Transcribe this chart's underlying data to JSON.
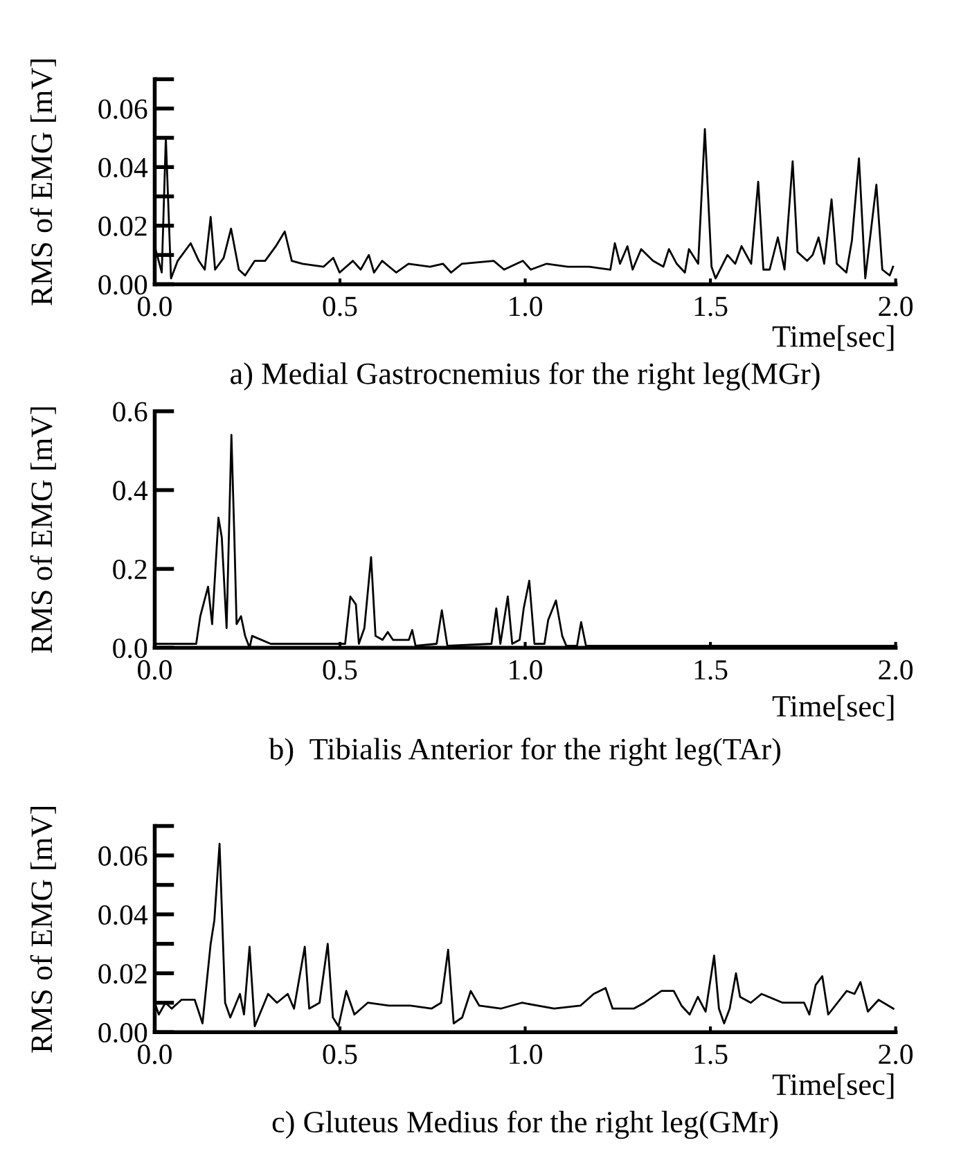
{
  "chart_data": [
    {
      "type": "line",
      "title": "a) Medial Gastrocnemius for the right leg(MGr)",
      "xlabel": "Time[sec]",
      "ylabel": "RMS of EMG [mV]",
      "grid": false,
      "legend": false,
      "xlim": [
        0,
        2.0
      ],
      "ylim": [
        0,
        0.07
      ],
      "xticks": [
        {
          "value": 0,
          "label": "0.0"
        },
        {
          "value": 0.5,
          "label": "0.5"
        },
        {
          "value": 1.0,
          "label": "1.0"
        },
        {
          "value": 1.5,
          "label": "1.5"
        },
        {
          "value": 2.0,
          "label": "2.0"
        }
      ],
      "yticks": [
        {
          "value": 0,
          "label": "0.00"
        },
        {
          "value": 0.01,
          "label": null
        },
        {
          "value": 0.02,
          "label": "0.02"
        },
        {
          "value": 0.03,
          "label": null
        },
        {
          "value": 0.04,
          "label": "0.04"
        },
        {
          "value": 0.05,
          "label": null
        },
        {
          "value": 0.06,
          "label": "0.06"
        },
        {
          "value": 0.07,
          "label": null
        }
      ],
      "series": [
        {
          "color": "#000000",
          "x": [
            0.0,
            0.019,
            0.03,
            0.044,
            0.062,
            0.097,
            0.119,
            0.135,
            0.151,
            0.163,
            0.186,
            0.206,
            0.227,
            0.244,
            0.27,
            0.298,
            0.327,
            0.351,
            0.37,
            0.399,
            0.456,
            0.482,
            0.499,
            0.535,
            0.556,
            0.578,
            0.592,
            0.614,
            0.652,
            0.685,
            0.743,
            0.778,
            0.8,
            0.829,
            0.915,
            0.943,
            0.994,
            1.015,
            1.058,
            1.115,
            1.173,
            1.23,
            1.242,
            1.256,
            1.276,
            1.29,
            1.313,
            1.345,
            1.373,
            1.388,
            1.409,
            1.431,
            1.442,
            1.467,
            1.485,
            1.503,
            1.514,
            1.546,
            1.567,
            1.584,
            1.61,
            1.629,
            1.643,
            1.66,
            1.682,
            1.7,
            1.722,
            1.735,
            1.761,
            1.776,
            1.792,
            1.807,
            1.827,
            1.841,
            1.867,
            1.882,
            1.901,
            1.918,
            1.948,
            1.964,
            1.984,
            1.993
          ],
          "values": [
            0.013,
            0.004,
            0.05,
            0.002,
            0.008,
            0.014,
            0.008,
            0.005,
            0.023,
            0.005,
            0.009,
            0.019,
            0.005,
            0.003,
            0.008,
            0.008,
            0.013,
            0.018,
            0.008,
            0.007,
            0.006,
            0.009,
            0.004,
            0.008,
            0.005,
            0.01,
            0.004,
            0.008,
            0.004,
            0.007,
            0.006,
            0.007,
            0.004,
            0.007,
            0.008,
            0.005,
            0.008,
            0.005,
            0.007,
            0.006,
            0.006,
            0.005,
            0.014,
            0.007,
            0.013,
            0.005,
            0.012,
            0.008,
            0.006,
            0.012,
            0.007,
            0.004,
            0.012,
            0.007,
            0.053,
            0.006,
            0.002,
            0.01,
            0.007,
            0.013,
            0.007,
            0.035,
            0.005,
            0.005,
            0.016,
            0.005,
            0.042,
            0.011,
            0.008,
            0.01,
            0.016,
            0.007,
            0.029,
            0.007,
            0.004,
            0.015,
            0.043,
            0.002,
            0.034,
            0.005,
            0.003,
            0.006
          ]
        }
      ]
    },
    {
      "type": "line",
      "title": "b)  Tibialis Anterior for the right leg(TAr)",
      "xlabel": "Time[sec]",
      "ylabel": "RMS of EMG [mV]",
      "grid": false,
      "legend": false,
      "xlim": [
        0,
        2.0
      ],
      "ylim": [
        0,
        0.6
      ],
      "xticks": [
        {
          "value": 0,
          "label": "0.0"
        },
        {
          "value": 0.5,
          "label": "0.5"
        },
        {
          "value": 1.0,
          "label": "1.0"
        },
        {
          "value": 1.5,
          "label": "1.5"
        },
        {
          "value": 2.0,
          "label": "2.0"
        }
      ],
      "yticks": [
        {
          "value": 0,
          "label": "0.0"
        },
        {
          "value": 0.2,
          "label": "0.2"
        },
        {
          "value": 0.4,
          "label": "0.4"
        },
        {
          "value": 0.6,
          "label": "0.6"
        }
      ],
      "series": [
        {
          "color": "#000000",
          "x": [
            0.0,
            0.112,
            0.123,
            0.144,
            0.155,
            0.172,
            0.181,
            0.194,
            0.207,
            0.215,
            0.221,
            0.233,
            0.244,
            0.256,
            0.263,
            0.313,
            0.514,
            0.528,
            0.543,
            0.551,
            0.566,
            0.584,
            0.596,
            0.615,
            0.629,
            0.643,
            0.686,
            0.695,
            0.704,
            0.761,
            0.775,
            0.79,
            0.909,
            0.922,
            0.933,
            0.953,
            0.965,
            0.985,
            0.996,
            1.011,
            1.025,
            1.052,
            1.062,
            1.083,
            1.1,
            1.111,
            1.14,
            1.151,
            1.164,
            2.0
          ],
          "values": [
            0.01,
            0.01,
            0.08,
            0.155,
            0.06,
            0.33,
            0.28,
            0.05,
            0.54,
            0.28,
            0.06,
            0.08,
            0.03,
            0.0,
            0.03,
            0.01,
            0.01,
            0.13,
            0.11,
            0.01,
            0.05,
            0.23,
            0.03,
            0.02,
            0.04,
            0.02,
            0.02,
            0.045,
            0.005,
            0.01,
            0.095,
            0.005,
            0.01,
            0.1,
            0.01,
            0.13,
            0.01,
            0.02,
            0.1,
            0.17,
            0.01,
            0.01,
            0.07,
            0.12,
            0.03,
            0.005,
            0.005,
            0.065,
            0.005,
            0.005
          ]
        }
      ]
    },
    {
      "type": "line",
      "title": "c) Gluteus Medius for the right leg(GMr)",
      "xlabel": "Time[sec]",
      "ylabel": "RMS of EMG [mV]",
      "grid": false,
      "legend": false,
      "xlim": [
        0,
        2.0
      ],
      "ylim": [
        0,
        0.07
      ],
      "xticks": [
        {
          "value": 0,
          "label": "0.0"
        },
        {
          "value": 0.5,
          "label": "0.5"
        },
        {
          "value": 1.0,
          "label": "1.0"
        },
        {
          "value": 1.5,
          "label": "1.5"
        },
        {
          "value": 2.0,
          "label": "2.0"
        }
      ],
      "yticks": [
        {
          "value": 0,
          "label": "0.00"
        },
        {
          "value": 0.01,
          "label": null
        },
        {
          "value": 0.02,
          "label": "0.02"
        },
        {
          "value": 0.03,
          "label": null
        },
        {
          "value": 0.04,
          "label": "0.04"
        },
        {
          "value": 0.05,
          "label": null
        },
        {
          "value": 0.06,
          "label": "0.06"
        },
        {
          "value": 0.07,
          "label": null
        }
      ],
      "series": [
        {
          "color": "#000000",
          "x": [
            0.0,
            0.011,
            0.029,
            0.046,
            0.072,
            0.108,
            0.129,
            0.151,
            0.161,
            0.175,
            0.19,
            0.204,
            0.23,
            0.241,
            0.256,
            0.27,
            0.306,
            0.33,
            0.359,
            0.376,
            0.405,
            0.417,
            0.445,
            0.467,
            0.481,
            0.496,
            0.517,
            0.539,
            0.575,
            0.632,
            0.69,
            0.747,
            0.773,
            0.792,
            0.807,
            0.83,
            0.853,
            0.876,
            0.934,
            0.991,
            1.078,
            1.149,
            1.185,
            1.217,
            1.236,
            1.293,
            1.322,
            1.368,
            1.401,
            1.422,
            1.444,
            1.466,
            1.487,
            1.51,
            1.523,
            1.537,
            1.552,
            1.569,
            1.58,
            1.609,
            1.638,
            1.695,
            1.753,
            1.767,
            1.784,
            1.802,
            1.818,
            1.868,
            1.889,
            1.905,
            1.925,
            1.954,
            1.994
          ],
          "values": [
            0.01,
            0.006,
            0.01,
            0.008,
            0.011,
            0.011,
            0.003,
            0.03,
            0.038,
            0.064,
            0.01,
            0.005,
            0.013,
            0.006,
            0.029,
            0.002,
            0.013,
            0.01,
            0.013,
            0.008,
            0.029,
            0.008,
            0.01,
            0.03,
            0.005,
            0.002,
            0.014,
            0.006,
            0.01,
            0.009,
            0.009,
            0.008,
            0.01,
            0.028,
            0.003,
            0.005,
            0.014,
            0.009,
            0.008,
            0.01,
            0.008,
            0.009,
            0.013,
            0.015,
            0.008,
            0.008,
            0.01,
            0.014,
            0.014,
            0.009,
            0.006,
            0.012,
            0.007,
            0.026,
            0.008,
            0.003,
            0.008,
            0.02,
            0.012,
            0.01,
            0.013,
            0.01,
            0.01,
            0.006,
            0.016,
            0.019,
            0.006,
            0.014,
            0.013,
            0.017,
            0.007,
            0.011,
            0.008
          ]
        }
      ]
    }
  ]
}
